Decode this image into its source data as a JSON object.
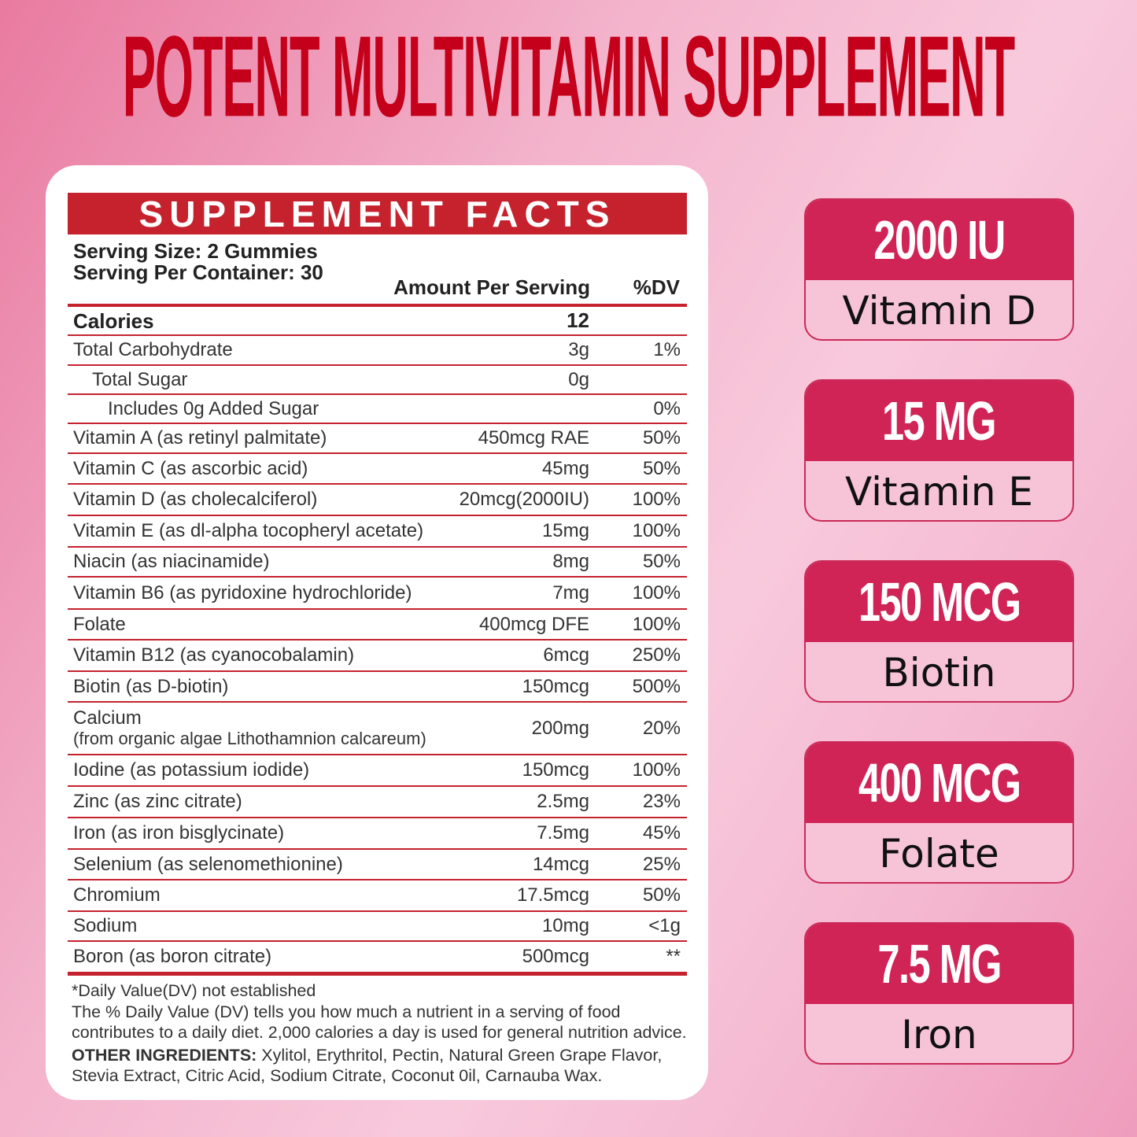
{
  "title": "POTENT MULTIVITAMIN SUPPLEMENT",
  "colors": {
    "title": "#c4001a",
    "table_accent": "#c5222e",
    "badge": "#d02356"
  },
  "facts": {
    "heading": "SUPPLEMENT FACTS",
    "serving_size": "Serving Size: 2 Gummies",
    "servings_per_container": "Serving Per Container: 30",
    "col_amount": "Amount Per Serving",
    "col_dv": "%DV",
    "rows": [
      {
        "name": "Calories",
        "sub": "",
        "amount": "12",
        "dv": "",
        "bold": true,
        "indent": 0
      },
      {
        "name": "Total Carbohydrate",
        "sub": "",
        "amount": "3g",
        "dv": "1%",
        "indent": 0
      },
      {
        "name": "Total Sugar",
        "sub": "",
        "amount": "0g",
        "dv": "",
        "indent": 1
      },
      {
        "name": "Includes 0g Added Sugar",
        "sub": "",
        "amount": "",
        "dv": "0%",
        "indent": 2
      },
      {
        "name": "Vitamin A (as retinyl palmitate)",
        "sub": "",
        "amount": "450mcg RAE",
        "dv": "50%",
        "indent": 0
      },
      {
        "name": "Vitamin C (as ascorbic acid)",
        "sub": "",
        "amount": "45mg",
        "dv": "50%",
        "indent": 0
      },
      {
        "name": "Vitamin D (as cholecalciferol)",
        "sub": "",
        "amount": "20mcg(2000IU)",
        "dv": "100%",
        "indent": 0
      },
      {
        "name": "Vitamin E (as dl-alpha tocopheryl acetate)",
        "sub": "",
        "amount": "15mg",
        "dv": "100%",
        "indent": 0
      },
      {
        "name": "Niacin (as niacinamide)",
        "sub": "",
        "amount": "8mg",
        "dv": "50%",
        "indent": 0
      },
      {
        "name": "Vitamin B6 (as pyridoxine hydrochloride)",
        "sub": "",
        "amount": "7mg",
        "dv": "100%",
        "indent": 0
      },
      {
        "name": "Folate",
        "sub": "",
        "amount": "400mcg DFE",
        "dv": "100%",
        "indent": 0
      },
      {
        "name": "Vitamin B12 (as cyanocobalamin)",
        "sub": "",
        "amount": "6mcg",
        "dv": "250%",
        "indent": 0
      },
      {
        "name": "Biotin (as D-biotin)",
        "sub": "",
        "amount": "150mcg",
        "dv": "500%",
        "indent": 0
      },
      {
        "name": "Calcium",
        "sub": "(from organic algae Lithothamnion calcareum)",
        "amount": "200mg",
        "dv": "20%",
        "indent": 0
      },
      {
        "name": "Iodine (as potassium iodide)",
        "sub": "",
        "amount": "150mcg",
        "dv": "100%",
        "indent": 0
      },
      {
        "name": "Zinc (as zinc citrate)",
        "sub": "",
        "amount": "2.5mg",
        "dv": "23%",
        "indent": 0
      },
      {
        "name": "Iron (as iron bisglycinate)",
        "sub": "",
        "amount": "7.5mg",
        "dv": "45%",
        "indent": 0
      },
      {
        "name": "Selenium (as selenomethionine)",
        "sub": "",
        "amount": "14mcg",
        "dv": "25%",
        "indent": 0
      },
      {
        "name": "Chromium",
        "sub": "",
        "amount": "17.5mcg",
        "dv": "50%",
        "indent": 0
      },
      {
        "name": "Sodium",
        "sub": "",
        "amount": "10mg",
        "dv": "<1g",
        "indent": 0
      },
      {
        "name": "Boron (as boron citrate)",
        "sub": "",
        "amount": "500mcg",
        "dv": "**",
        "indent": 0
      }
    ],
    "footnote1": "*Daily Value(DV) not established",
    "footnote2": "The % Daily Value (DV) tells you how much a nutrient in a serving of food contributes to a daily diet. 2,000 calories a day is used for general nutrition advice.",
    "other_label": "OTHER INGREDIENTS:",
    "other_text": " Xylitol, Erythritol, Pectin, Natural Green Grape Flavor, Stevia Extract, Citric Acid, Sodium Citrate, Coconut 0il, Carnauba Wax."
  },
  "badges": [
    {
      "amount": "2000 IU",
      "nutrient": "Vitamin D"
    },
    {
      "amount": "15 MG",
      "nutrient": "Vitamin E"
    },
    {
      "amount": "150 MCG",
      "nutrient": "Biotin"
    },
    {
      "amount": "400 MCG",
      "nutrient": "Folate"
    },
    {
      "amount": "7.5 MG",
      "nutrient": "Iron"
    }
  ]
}
